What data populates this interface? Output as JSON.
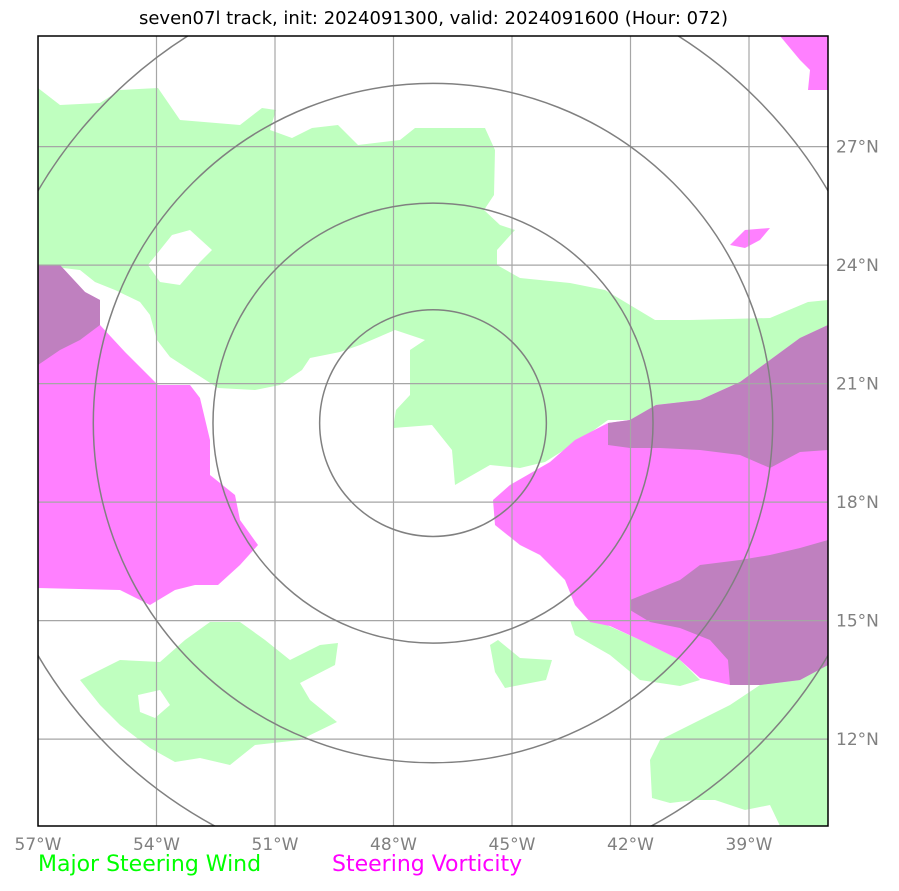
{
  "title": "seven07l track, init: 2024091300, valid: 2024091600 (Hour: 072)",
  "map": {
    "lon_range": [
      -57,
      -37
    ],
    "lat_range": [
      9.8,
      29.8
    ],
    "center": {
      "lon": -47,
      "lat": 20
    },
    "lon_ticks": [
      {
        "value": -57,
        "label": "57°W"
      },
      {
        "value": -54,
        "label": "54°W"
      },
      {
        "value": -51,
        "label": "51°W"
      },
      {
        "value": -48,
        "label": "48°W"
      },
      {
        "value": -45,
        "label": "45°W"
      },
      {
        "value": -42,
        "label": "42°W"
      },
      {
        "value": -39,
        "label": "39°W"
      }
    ],
    "lat_ticks": [
      {
        "value": 27,
        "label": "27°N"
      },
      {
        "value": 24,
        "label": "24°N"
      },
      {
        "value": 21,
        "label": "21°N"
      },
      {
        "value": 18,
        "label": "18°N"
      },
      {
        "value": 15,
        "label": "15°N"
      },
      {
        "value": 12,
        "label": "12°N"
      }
    ],
    "range_ring_radii_deg": [
      2.87,
      5.57,
      8.6,
      11.6
    ],
    "colors": {
      "wind": "#bfffbf",
      "vorticity": "#ff80ff",
      "overlap": "#bf80bf",
      "grid": "#a6a6a6",
      "rings": "#808080",
      "frame": "#000000"
    }
  },
  "legend": {
    "wind": {
      "label": "Major Steering Wind",
      "color": "#00ff00"
    },
    "vorticity": {
      "label": "Steering Vorticity",
      "color": "#ff00ff"
    }
  }
}
